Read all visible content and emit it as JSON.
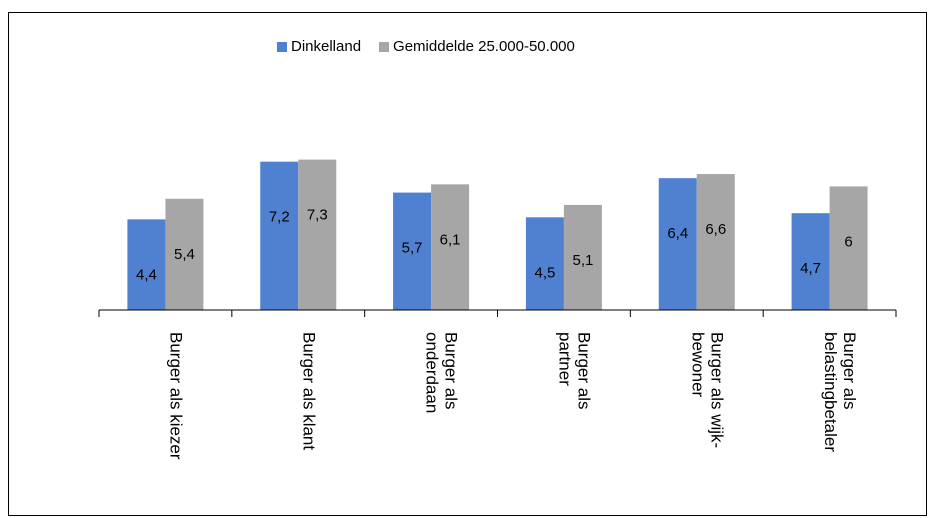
{
  "chart_data": {
    "type": "bar",
    "categories": [
      [
        "Burger als kiezer"
      ],
      [
        "Burger als klant"
      ],
      [
        "Burger als",
        "onderdaan"
      ],
      [
        "Burger als",
        "partner"
      ],
      [
        "Burger als wijk-",
        "bewoner"
      ],
      [
        "Burger als",
        "belastingbetaler"
      ]
    ],
    "series": [
      {
        "name": "Dinkelland",
        "color": "#4f81d0",
        "values": [
          4.4,
          7.2,
          5.7,
          4.5,
          6.4,
          4.7
        ],
        "labels": [
          "4,4",
          "7,2",
          "5,7",
          "4,5",
          "6,4",
          "4,7"
        ]
      },
      {
        "name": "Gemiddelde 25.000-50.000",
        "color": "#a6a6a6",
        "values": [
          5.4,
          7.3,
          6.1,
          5.1,
          6.6,
          6
        ],
        "labels": [
          "5,4",
          "7,3",
          "6,1",
          "5,1",
          "6,6",
          "6"
        ]
      }
    ],
    "ylim": [
      0,
      11
    ],
    "grid": false,
    "legend_position": "top"
  }
}
